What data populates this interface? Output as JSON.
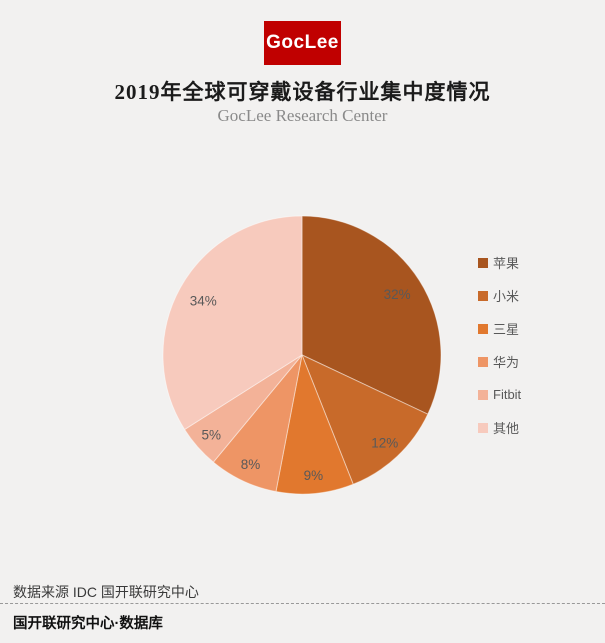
{
  "page": {
    "background": "#F2F1F0"
  },
  "header": {
    "logo_text": "GocLee",
    "logo_bg": "#C00000",
    "title": "2019年全球可穿戴设备行业集中度情况",
    "subtitle": "GocLee Research Center"
  },
  "chart_data": {
    "type": "pie",
    "title": "2019年全球可穿戴设备行业集中度情况",
    "start_angle_deg": 0,
    "direction": "clockwise",
    "legend_position": "right",
    "label_color": "#595959",
    "slices": [
      {
        "label": "苹果",
        "value": 32,
        "percent_label": "32%",
        "color": "#A8551F"
      },
      {
        "label": "小米",
        "value": 12,
        "percent_label": "12%",
        "color": "#C86A2A"
      },
      {
        "label": "三星",
        "value": 9,
        "percent_label": "9%",
        "color": "#E1782E"
      },
      {
        "label": "华为",
        "value": 8,
        "percent_label": "8%",
        "color": "#EE9565"
      },
      {
        "label": "Fitbit",
        "value": 5,
        "percent_label": "5%",
        "color": "#F3B298"
      },
      {
        "label": "其他",
        "value": 34,
        "percent_label": "34%",
        "color": "#F7CABD"
      }
    ]
  },
  "footer": {
    "source": "数据来源 IDC 国开联研究中心",
    "brand": "国开联研究中心·数据库"
  }
}
